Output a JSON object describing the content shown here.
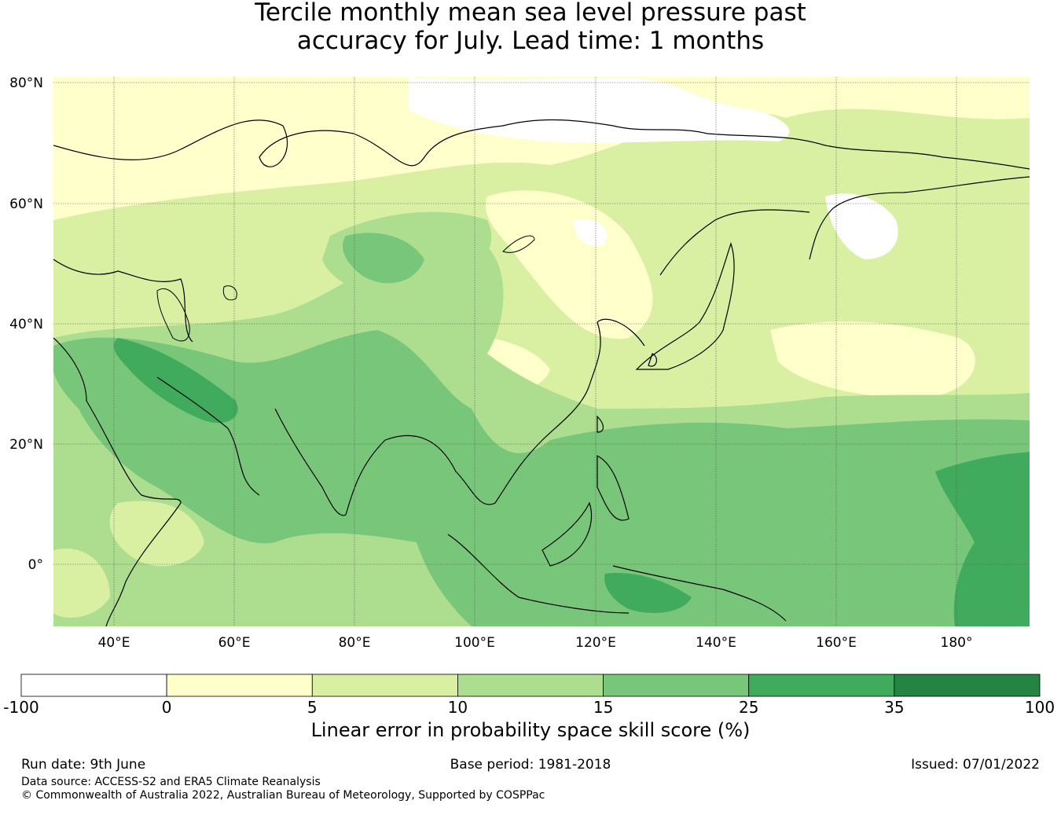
{
  "title": {
    "line1": "Tercile monthly mean sea level pressure past",
    "line2": "accuracy for July. Lead time: 1 months"
  },
  "map": {
    "lon_range": [
      30,
      192
    ],
    "lat_range": [
      -10,
      80
    ],
    "lat_labels": [
      "80°N",
      "60°N",
      "40°N",
      "20°N",
      "0°"
    ],
    "lon_labels": [
      "40°E",
      "60°E",
      "80°E",
      "100°E",
      "120°E",
      "140°E",
      "160°E",
      "180°"
    ]
  },
  "colorbar": {
    "ticks": [
      "-100",
      "0",
      "5",
      "10",
      "15",
      "25",
      "35",
      "100"
    ],
    "colors": [
      "#ffffff",
      "#ffffcc",
      "#d9f0a3",
      "#addd8e",
      "#78c679",
      "#41ab5d",
      "#238443"
    ],
    "label": "Linear error in probability space skill score (%)"
  },
  "footer": {
    "run_date": "Run date: 9th June",
    "base_period": "Base period: 1981-2018",
    "issued": "Issued: 07/01/2022",
    "data_source": "Data source: ACCESS-S2 and ERA5 Climate Reanalysis",
    "copyright": "© Commonwealth of Australia 2022, Australian Bureau of Meteorology, Supported by COSPPac"
  }
}
